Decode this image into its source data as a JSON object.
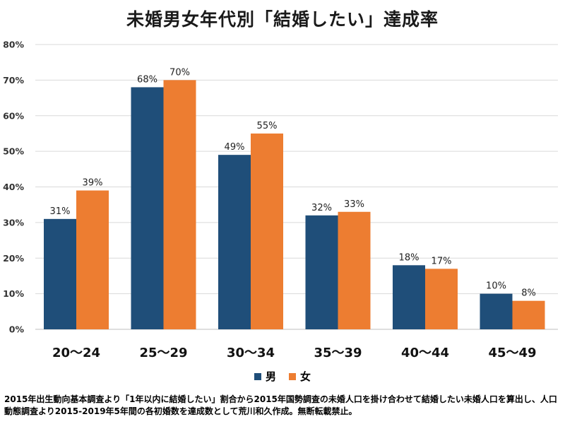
{
  "chart_data": {
    "type": "bar",
    "title": "未婚男女年代別「結婚したい」達成率",
    "categories": [
      "20〜24",
      "25〜29",
      "30〜34",
      "35〜39",
      "40〜44",
      "45〜49"
    ],
    "series": [
      {
        "name": "男",
        "color": "#1f4e79",
        "values": [
          31,
          68,
          49,
          32,
          18,
          10
        ],
        "labels": [
          "31%",
          "68%",
          "49%",
          "32%",
          "18%",
          "10%"
        ]
      },
      {
        "name": "女",
        "color": "#ed7d31",
        "values": [
          39,
          70,
          55,
          33,
          17,
          8
        ],
        "labels": [
          "39%",
          "70%",
          "55%",
          "33%",
          "17%",
          "8%"
        ]
      }
    ],
    "y_ticks": [
      0,
      10,
      20,
      30,
      40,
      50,
      60,
      70,
      80
    ],
    "y_tick_labels": [
      "0%",
      "10%",
      "20%",
      "30%",
      "40%",
      "50%",
      "60%",
      "70%",
      "80%"
    ],
    "ylim": [
      0,
      80
    ],
    "grid": true,
    "legend_position": "bottom"
  },
  "footnote": "2015年出生動向基本調査より「1年以内に結婚したい」割合から2015年国勢調査の未婚人口を掛け合わせて結婚したい未婚人口を算出し、人口動態調査より2015-2019年5年間の各初婚数を達成数として荒川和久作成。無断転載禁止。"
}
